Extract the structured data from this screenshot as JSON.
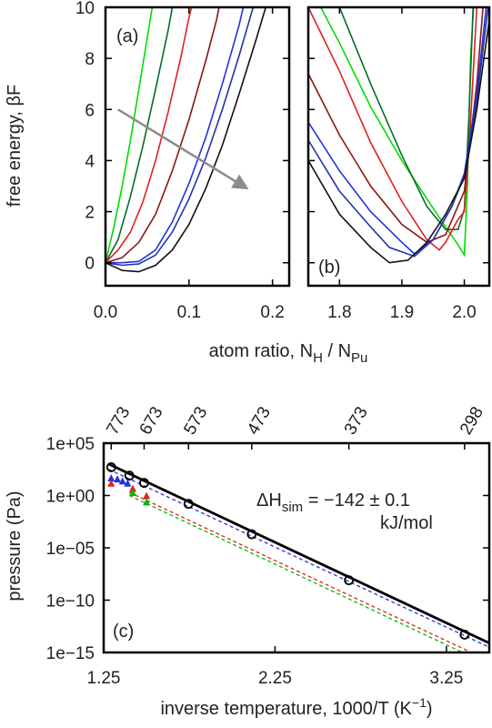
{
  "figure": {
    "top": {
      "ylabel": "free energy, βF",
      "xlabel_main": "atom ratio, N",
      "xlabel_sub_h": "H",
      "xlabel_sep": " / N",
      "xlabel_sub_pu": "Pu"
    },
    "bottom": {
      "ylabel": "pressure (Pa)",
      "xlabel_main": "inverse temperature, 1000/T (K",
      "xlabel_sup": "−1",
      "xlabel_close": ")",
      "annotation_main": "ΔH",
      "annotation_sub": "sim",
      "annotation_value": " = −142 ± 0.1",
      "annotation_units": "kJ/mol"
    }
  },
  "chart_data": [
    {
      "id": "a",
      "type": "line",
      "panel_label": "(a)",
      "xlim": [
        0.0,
        0.22
      ],
      "ylim": [
        -0.9,
        10
      ],
      "x_ticks": [
        0.0,
        0.1,
        0.2
      ],
      "x_tick_labels": [
        "0.0",
        "0.1",
        "0.2"
      ],
      "y_ticks": [
        0,
        2,
        4,
        6,
        8,
        10
      ],
      "y_tick_labels": [
        "0",
        "2",
        "4",
        "6",
        "8",
        "10"
      ],
      "arrow": {
        "from": [
          0.015,
          6.0
        ],
        "to": [
          0.165,
          3.0
        ],
        "color": "#8c8c8c"
      },
      "series": [
        {
          "color": "#00dd00",
          "points": [
            [
              0,
              0
            ],
            [
              0.01,
              1.4
            ],
            [
              0.02,
              3.0
            ],
            [
              0.03,
              4.8
            ],
            [
              0.04,
              6.8
            ],
            [
              0.05,
              8.8
            ],
            [
              0.056,
              10
            ]
          ]
        },
        {
          "color": "#0a6a2a",
          "points": [
            [
              0,
              0
            ],
            [
              0.015,
              0.9
            ],
            [
              0.03,
              2.6
            ],
            [
              0.045,
              4.6
            ],
            [
              0.06,
              6.8
            ],
            [
              0.075,
              9.1
            ],
            [
              0.08,
              10
            ]
          ]
        },
        {
          "color": "#e02020",
          "points": [
            [
              0,
              0
            ],
            [
              0.015,
              0.5
            ],
            [
              0.03,
              1.2
            ],
            [
              0.045,
              2.4
            ],
            [
              0.06,
              4.0
            ],
            [
              0.075,
              5.9
            ],
            [
              0.09,
              8.0
            ],
            [
              0.1,
              9.6
            ],
            [
              0.103,
              10
            ]
          ]
        },
        {
          "color": "#8c1515",
          "points": [
            [
              0,
              0
            ],
            [
              0.02,
              0.2
            ],
            [
              0.04,
              0.8
            ],
            [
              0.06,
              1.9
            ],
            [
              0.08,
              3.6
            ],
            [
              0.1,
              5.6
            ],
            [
              0.12,
              7.9
            ],
            [
              0.133,
              9.5
            ],
            [
              0.136,
              10
            ]
          ]
        },
        {
          "color": "#2233dd",
          "points": [
            [
              0,
              0
            ],
            [
              0.02,
              0.0
            ],
            [
              0.04,
              0.05
            ],
            [
              0.06,
              0.5
            ],
            [
              0.08,
              1.6
            ],
            [
              0.1,
              3.1
            ],
            [
              0.12,
              4.9
            ],
            [
              0.14,
              7.0
            ],
            [
              0.16,
              9.3
            ],
            [
              0.165,
              10
            ]
          ]
        },
        {
          "color": "#2233aa",
          "points": [
            [
              0,
              0
            ],
            [
              0.02,
              -0.1
            ],
            [
              0.04,
              -0.05
            ],
            [
              0.06,
              0.3
            ],
            [
              0.08,
              1.2
            ],
            [
              0.1,
              2.5
            ],
            [
              0.12,
              4.1
            ],
            [
              0.14,
              6.0
            ],
            [
              0.16,
              8.1
            ],
            [
              0.175,
              9.8
            ],
            [
              0.177,
              10
            ]
          ]
        },
        {
          "color": "#111111",
          "points": [
            [
              0,
              0
            ],
            [
              0.02,
              -0.3
            ],
            [
              0.04,
              -0.35
            ],
            [
              0.06,
              -0.1
            ],
            [
              0.08,
              0.5
            ],
            [
              0.1,
              1.5
            ],
            [
              0.12,
              2.9
            ],
            [
              0.14,
              4.6
            ],
            [
              0.16,
              6.6
            ],
            [
              0.18,
              8.7
            ],
            [
              0.19,
              9.8
            ],
            [
              0.192,
              10
            ]
          ]
        }
      ]
    },
    {
      "id": "b",
      "type": "line",
      "panel_label": "(b)",
      "xlim": [
        1.75,
        2.04
      ],
      "ylim": [
        -0.9,
        10
      ],
      "x_ticks": [
        1.8,
        1.9,
        2.0
      ],
      "x_tick_labels": [
        "1.8",
        "1.9",
        "2.0"
      ],
      "y_ticks": [
        0,
        2,
        4,
        6,
        8,
        10
      ],
      "series": [
        {
          "color": "#00dd00",
          "points": [
            [
              1.77,
              10
            ],
            [
              1.8,
              8.6
            ],
            [
              1.85,
              6.1
            ],
            [
              1.9,
              4.0
            ],
            [
              1.94,
              2.5
            ],
            [
              1.97,
              1.4
            ],
            [
              1.99,
              0.7
            ],
            [
              2.0,
              0.3
            ],
            [
              2.005,
              3.0
            ],
            [
              2.01,
              8.0
            ],
            [
              2.015,
              10
            ]
          ]
        },
        {
          "color": "#0a6a2a",
          "points": [
            [
              1.8,
              10
            ],
            [
              1.85,
              7.0
            ],
            [
              1.9,
              4.2
            ],
            [
              1.94,
              2.2
            ],
            [
              1.97,
              1.3
            ],
            [
              1.99,
              1.3
            ],
            [
              2.0,
              2.1
            ],
            [
              2.008,
              6.0
            ],
            [
              2.014,
              10
            ]
          ]
        },
        {
          "color": "#e02020",
          "points": [
            [
              1.75,
              10
            ],
            [
              1.8,
              7.5
            ],
            [
              1.85,
              4.7
            ],
            [
              1.9,
              2.4
            ],
            [
              1.94,
              0.9
            ],
            [
              1.96,
              0.5
            ],
            [
              1.97,
              0.8
            ],
            [
              1.99,
              1.7
            ],
            [
              2.0,
              2.0
            ],
            [
              2.01,
              5.5
            ],
            [
              2.02,
              10
            ]
          ]
        },
        {
          "color": "#8c1515",
          "points": [
            [
              1.75,
              7.4
            ],
            [
              1.8,
              5.0
            ],
            [
              1.85,
              3.0
            ],
            [
              1.9,
              1.5
            ],
            [
              1.94,
              0.8
            ],
            [
              1.97,
              1.1
            ],
            [
              2.0,
              2.8
            ],
            [
              2.02,
              7.0
            ],
            [
              2.03,
              10
            ]
          ]
        },
        {
          "color": "#2233dd",
          "points": [
            [
              1.75,
              5.5
            ],
            [
              1.8,
              3.6
            ],
            [
              1.85,
              2.0
            ],
            [
              1.9,
              0.8
            ],
            [
              1.92,
              0.35
            ],
            [
              1.95,
              0.9
            ],
            [
              1.98,
              2.2
            ],
            [
              2.0,
              3.5
            ],
            [
              2.02,
              6.6
            ],
            [
              2.035,
              10
            ]
          ]
        },
        {
          "color": "#2233aa",
          "points": [
            [
              1.75,
              4.8
            ],
            [
              1.8,
              2.8
            ],
            [
              1.85,
              1.4
            ],
            [
              1.88,
              0.6
            ],
            [
              1.92,
              0.25
            ],
            [
              1.95,
              0.9
            ],
            [
              1.98,
              2.2
            ],
            [
              2.0,
              3.4
            ],
            [
              2.02,
              6.3
            ],
            [
              2.038,
              10
            ]
          ]
        },
        {
          "color": "#111111",
          "points": [
            [
              1.75,
              4.0
            ],
            [
              1.8,
              1.9
            ],
            [
              1.85,
              0.6
            ],
            [
              1.88,
              0.0
            ],
            [
              1.91,
              0.1
            ],
            [
              1.94,
              0.8
            ],
            [
              1.97,
              1.9
            ],
            [
              2.0,
              3.3
            ],
            [
              2.02,
              6.0
            ],
            [
              2.04,
              9.5
            ]
          ]
        }
      ]
    },
    {
      "id": "c",
      "type": "scatter",
      "panel_label": "(c)",
      "y_scale": "log",
      "xlim": [
        1.25,
        3.5
      ],
      "ylim_log10": [
        -15,
        5
      ],
      "x_ticks": [
        1.25,
        2.25,
        3.25
      ],
      "x_tick_labels": [
        "1.25",
        "2.25",
        "3.25"
      ],
      "y_ticks_log10": [
        5,
        0,
        -5,
        -10,
        -15
      ],
      "y_tick_labels": [
        "1e+05",
        "1e+00",
        "1e−05",
        "1e−10",
        "1e−15"
      ],
      "top_ticks_x": [
        1.294,
        1.486,
        1.745,
        2.114,
        2.681,
        3.356
      ],
      "top_tick_labels": [
        "773",
        "673",
        "573",
        "473",
        "373",
        "298"
      ],
      "fit_line": {
        "color": "#000000",
        "points": [
          [
            1.28,
            3.0
          ],
          [
            3.5,
            -14.1
          ]
        ]
      },
      "dashed_lines": [
        {
          "color": "#2233dd",
          "points": [
            [
              1.28,
              2.5
            ],
            [
              3.5,
              -14.5
            ]
          ]
        },
        {
          "color": "#e02020",
          "points": [
            [
              1.4,
              0.3
            ],
            [
              3.5,
              -15.8
            ]
          ]
        },
        {
          "color": "#00bb00",
          "points": [
            [
              1.4,
              0.0
            ],
            [
              3.5,
              -16.2
            ]
          ]
        }
      ],
      "open_points": {
        "color": "#000000",
        "points": [
          [
            1.294,
            2.7
          ],
          [
            1.4,
            1.9
          ],
          [
            1.486,
            1.2
          ],
          [
            1.745,
            -0.8
          ],
          [
            2.114,
            -3.7
          ],
          [
            2.681,
            -8.1
          ],
          [
            3.356,
            -13.3
          ]
        ]
      },
      "colored_markers": [
        {
          "color": "#2233dd",
          "points": [
            [
              1.294,
              1.7
            ],
            [
              1.33,
              1.6
            ],
            [
              1.36,
              1.4
            ],
            [
              1.39,
              1.2
            ]
          ]
        },
        {
          "color": "#e02020",
          "points": [
            [
              1.294,
              1.2
            ],
            [
              1.42,
              0.7
            ],
            [
              1.5,
              0.0
            ]
          ]
        },
        {
          "color": "#00bb00",
          "points": [
            [
              1.42,
              0.3
            ],
            [
              1.5,
              -0.6
            ]
          ]
        }
      ]
    }
  ]
}
